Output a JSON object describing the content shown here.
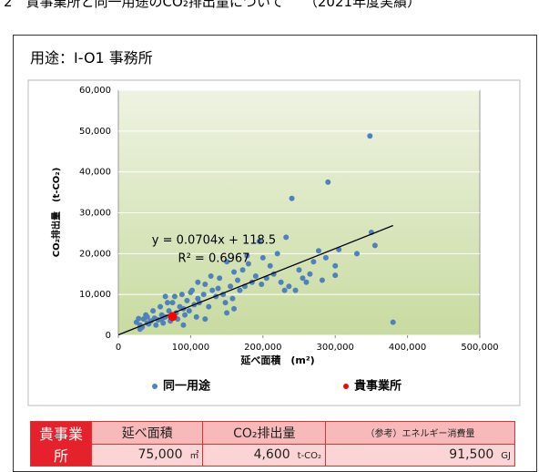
{
  "header": {
    "title": "2　貴事業所と同一用途のCO₂排出量について　　（2021年度実績）",
    "usage": "用途：Ⅰ-O1 事務所"
  },
  "chart_data": {
    "type": "scatter",
    "x_label": "延べ面積　(m²)",
    "y_label": "CO₂排出量　(t-CO₂)",
    "xlim": [
      0,
      500000
    ],
    "ylim": [
      0,
      60000
    ],
    "xticks": [
      0,
      {
        "value": 100000,
        "label": "100,000"
      },
      {
        "value": 200000,
        "label": "200,000"
      },
      {
        "value": 300000,
        "label": "300,000"
      },
      {
        "value": 400000,
        "label": "400,000"
      },
      {
        "value": 500000,
        "label": "500,000"
      }
    ],
    "yticks": [
      0,
      {
        "value": 10000,
        "label": "10,000"
      },
      {
        "value": 20000,
        "label": "20,000"
      },
      {
        "value": 30000,
        "label": "30,000"
      },
      {
        "value": 40000,
        "label": "40,000"
      },
      {
        "value": 50000,
        "label": "50,000"
      },
      {
        "value": 60000,
        "label": "60,000"
      }
    ],
    "grid": true,
    "series": [
      {
        "name": "同一用途",
        "color": "#4f81bd",
        "x": [
          348000,
          290000,
          240000,
          350000,
          355000,
          380000,
          300000,
          300000,
          330000,
          277000,
          287000,
          270000,
          250000,
          232000,
          195000,
          220000,
          180000,
          160000,
          150000,
          200000,
          210000,
          215000,
          190000,
          175000,
          165000,
          140000,
          130000,
          120000,
          100000,
          110000,
          105000,
          95000,
          90000,
          85000,
          80000,
          75000,
          70000,
          65000,
          60000,
          55000,
          50000,
          45000,
          40000,
          35000,
          30000,
          25000,
          28000,
          33000,
          38000,
          42000,
          48000,
          52000,
          58000,
          62000,
          68000,
          72000,
          78000,
          82000,
          88000,
          92000,
          98000,
          102000,
          108000,
          112000,
          118000,
          125000,
          128000,
          135000,
          138000,
          145000,
          148000,
          155000,
          158000,
          168000,
          172000,
          185000,
          198000,
          205000,
          225000,
          230000,
          236000,
          255000,
          260000,
          265000,
          282000,
          305000,
          150000,
          120000,
          160000,
          90000,
          30000,
          65000,
          110000,
          178000,
          245000,
          60000,
          40000
        ],
        "values": [
          48800,
          37500,
          33500,
          25200,
          22000,
          3200,
          17000,
          14700,
          20000,
          20700,
          19000,
          18000,
          16000,
          24000,
          23000,
          20000,
          17500,
          15500,
          18000,
          19000,
          17000,
          15000,
          14500,
          12000,
          13500,
          14000,
          11000,
          12500,
          10500,
          9000,
          7500,
          8500,
          6500,
          7000,
          5500,
          8000,
          6000,
          4500,
          5000,
          3800,
          4200,
          3500,
          3000,
          4000,
          2500,
          3200,
          4100,
          2000,
          5000,
          2800,
          6000,
          2500,
          7000,
          3000,
          8000,
          3500,
          9500,
          4000,
          10000,
          5000,
          6000,
          11000,
          4500,
          8000,
          10000,
          7000,
          14500,
          9500,
          11500,
          10000,
          8000,
          12000,
          9000,
          11000,
          16000,
          13000,
          12500,
          14000,
          13000,
          11000,
          12000,
          14000,
          13000,
          15000,
          13500,
          21000,
          5500,
          4000,
          6500,
          2500,
          1500,
          9500,
          13000,
          19500,
          11000,
          3800,
          4500
        ]
      },
      {
        "name": "貴事業所",
        "color": "#ff0000",
        "x": [
          75000
        ],
        "values": [
          4600
        ]
      }
    ],
    "trendline": {
      "slope": 0.0704,
      "intercept": 118.5,
      "color": "#000000",
      "label": "y = 0.0704x + 118.5",
      "r2_label": "R² = 0.6967"
    }
  },
  "table": {
    "row_header": "貴事業所",
    "headers": [
      "延べ面積",
      "CO₂排出量",
      "（参考）エネルギー消費量"
    ],
    "values": [
      "75,000",
      "4,600",
      "91,500"
    ],
    "units": [
      "㎡",
      "t-CO₂",
      "GJ"
    ]
  }
}
